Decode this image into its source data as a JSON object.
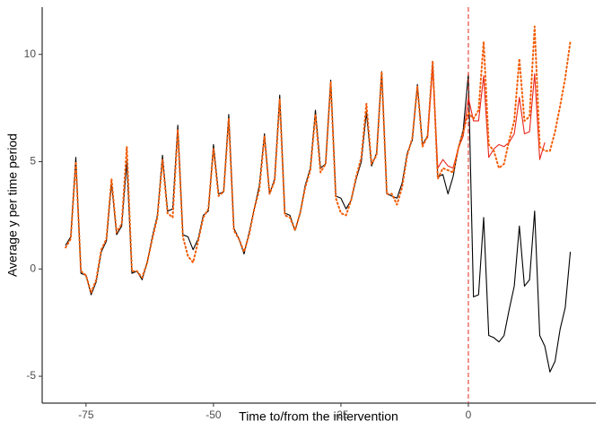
{
  "chart_data": {
    "type": "line",
    "x_label": "Time to/from the intervention",
    "y_label": "Average y per time period",
    "x": [
      -79,
      -78,
      -77,
      -76,
      -75,
      -74,
      -73,
      -72,
      -71,
      -70,
      -69,
      -68,
      -67,
      -66,
      -65,
      -64,
      -63,
      -62,
      -61,
      -60,
      -59,
      -58,
      -57,
      -56,
      -55,
      -54,
      -53,
      -52,
      -51,
      -50,
      -49,
      -48,
      -47,
      -46,
      -45,
      -44,
      -43,
      -42,
      -41,
      -40,
      -39,
      -38,
      -37,
      -36,
      -35,
      -34,
      -33,
      -32,
      -31,
      -30,
      -29,
      -28,
      -27,
      -26,
      -25,
      -24,
      -23,
      -22,
      -21,
      -20,
      -19,
      -18,
      -17,
      -16,
      -15,
      -14,
      -13,
      -12,
      -11,
      -10,
      -9,
      -8,
      -7,
      -6,
      -5,
      -4,
      -3,
      -2,
      -1,
      0,
      1,
      2,
      3,
      4,
      5,
      6,
      7,
      8,
      9,
      10,
      11,
      12,
      13,
      14,
      15,
      16,
      17,
      18,
      19,
      20
    ],
    "series": [
      {
        "color": "#000000",
        "style": "solid",
        "values": [
          1.1,
          1.5,
          5.2,
          -0.2,
          -0.3,
          -1.2,
          -0.6,
          0.8,
          1.3,
          4.0,
          1.6,
          2.0,
          5.0,
          -0.2,
          -0.1,
          -0.5,
          0.3,
          1.5,
          2.5,
          5.3,
          2.7,
          2.8,
          6.7,
          1.6,
          1.5,
          0.9,
          1.4,
          2.5,
          2.7,
          5.8,
          3.5,
          3.6,
          7.2,
          1.9,
          1.4,
          0.7,
          1.7,
          2.8,
          3.9,
          6.3,
          3.5,
          4.2,
          8.1,
          2.6,
          2.5,
          1.8,
          2.6,
          3.9,
          4.7,
          7.4,
          4.7,
          4.9,
          8.8,
          3.4,
          3.3,
          2.8,
          3.2,
          4.2,
          5.0,
          7.3,
          4.8,
          5.4,
          9.2,
          3.5,
          3.4,
          3.3,
          4.0,
          5.4,
          6.0,
          8.6,
          5.8,
          6.2,
          9.6,
          4.3,
          4.4,
          3.5,
          4.3,
          5.6,
          6.5,
          9.1,
          -1.3,
          -1.2,
          2.4,
          -3.1,
          -3.2,
          -3.4,
          -3.1,
          -1.9,
          -0.8,
          2.0,
          -0.8,
          -0.5,
          2.7,
          -3.1,
          -3.6,
          -4.8,
          -4.3,
          -2.8,
          -1.8,
          0.8
        ]
      },
      {
        "color": "#e8261b",
        "style": "solid",
        "values": [
          null,
          null,
          null,
          null,
          null,
          null,
          null,
          null,
          null,
          null,
          null,
          null,
          null,
          null,
          null,
          null,
          null,
          null,
          null,
          null,
          null,
          null,
          null,
          null,
          null,
          null,
          null,
          null,
          null,
          null,
          null,
          null,
          null,
          null,
          null,
          null,
          null,
          null,
          null,
          null,
          null,
          null,
          null,
          null,
          null,
          null,
          null,
          null,
          null,
          null,
          null,
          null,
          null,
          null,
          null,
          null,
          null,
          null,
          null,
          null,
          null,
          null,
          null,
          null,
          null,
          null,
          null,
          null,
          null,
          null,
          null,
          6.1,
          9.4,
          4.7,
          5.1,
          4.8,
          4.7,
          5.6,
          6.2,
          8.0,
          6.9,
          6.9,
          9.0,
          5.2,
          5.6,
          5.8,
          5.7,
          5.9,
          6.3,
          8.0,
          6.3,
          6.4,
          9.1,
          5.1,
          5.9,
          null,
          null,
          null,
          null,
          null
        ]
      },
      {
        "color": "#f25c05",
        "style": "dotted",
        "values": [
          1.0,
          1.4,
          5.0,
          -0.1,
          -0.3,
          -1.1,
          -0.5,
          0.9,
          1.4,
          4.2,
          1.7,
          2.1,
          5.7,
          -0.1,
          -0.1,
          -0.4,
          0.3,
          1.4,
          2.4,
          5.1,
          2.6,
          2.4,
          6.5,
          1.5,
          0.6,
          0.3,
          1.3,
          2.4,
          2.8,
          5.6,
          3.4,
          3.6,
          7.0,
          1.8,
          1.4,
          0.8,
          1.6,
          2.8,
          3.7,
          6.2,
          3.5,
          4.1,
          7.9,
          2.5,
          2.4,
          1.8,
          2.6,
          3.8,
          4.6,
          7.2,
          4.5,
          4.9,
          8.7,
          3.3,
          2.6,
          2.5,
          3.2,
          4.3,
          5.2,
          7.7,
          4.9,
          5.3,
          9.2,
          3.5,
          3.5,
          3.0,
          3.8,
          5.3,
          6.1,
          8.5,
          5.7,
          6.2,
          9.7,
          4.2,
          4.7,
          4.6,
          4.5,
          5.6,
          6.4,
          7.3,
          7.0,
          7.4,
          10.6,
          5.8,
          5.5,
          4.7,
          4.9,
          6.0,
          6.9,
          9.8,
          6.9,
          7.1,
          11.3,
          5.7,
          5.5,
          5.5,
          6.4,
          7.6,
          8.9,
          10.6
        ]
      }
    ],
    "vline": 0,
    "vline_color": "#e8261b",
    "xlim": [
      -83.6,
      25
    ],
    "ylim": [
      -6.25,
      12.2
    ],
    "xticks": [
      -75,
      -50,
      -25,
      0
    ],
    "yticks": [
      -5,
      0,
      5,
      10
    ],
    "grid": false
  }
}
